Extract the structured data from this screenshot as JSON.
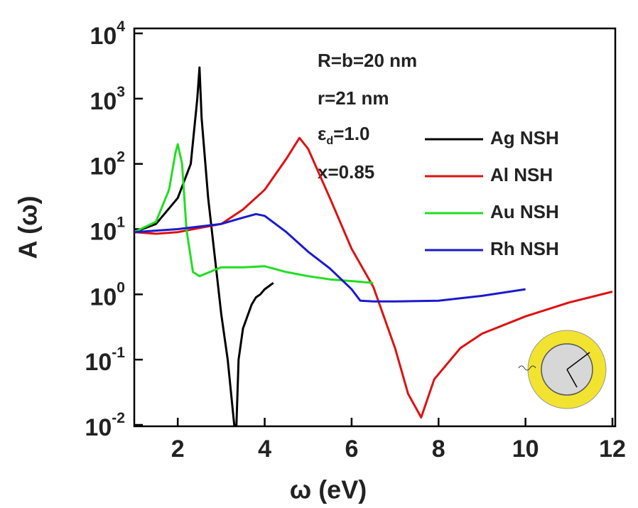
{
  "chart_data": {
    "type": "line",
    "x_label": "ω (eV)",
    "y_label": "A (ω)",
    "annotations": [
      "R=b=20 nm",
      "r=21 nm",
      "ε_d=1.0",
      "x=0.85"
    ],
    "xlim": [
      1,
      12
    ],
    "xticks": [
      2,
      4,
      6,
      8,
      10,
      12
    ],
    "ylim": [
      0.01,
      10000
    ],
    "log_y": true,
    "yticks": [
      {
        "value": 0.01,
        "label": "10^-2"
      },
      {
        "value": 0.1,
        "label": "10^-1"
      },
      {
        "value": 1,
        "label": "10^0"
      },
      {
        "value": 10,
        "label": "10^1"
      },
      {
        "value": 100,
        "label": "10^2"
      },
      {
        "value": 1000,
        "label": "10^3"
      },
      {
        "value": 10000,
        "label": "10^4"
      }
    ],
    "series": [
      {
        "name": "Ag NSH",
        "color": "#000000",
        "x": [
          1,
          1.5,
          2.0,
          2.3,
          2.45,
          2.5,
          2.55,
          2.7,
          2.9,
          3.0,
          3.15,
          3.3,
          3.35,
          3.4,
          3.5,
          3.7,
          3.8,
          3.9,
          4.0,
          4.2
        ],
        "values": [
          9,
          12,
          30,
          100,
          1000,
          3000,
          500,
          30,
          2,
          0.5,
          0.1,
          0.01,
          0.01,
          0.1,
          0.3,
          0.7,
          0.9,
          1.0,
          1.2,
          1.5
        ]
      },
      {
        "name": "Al NSH",
        "color": "#dd1111",
        "x": [
          1,
          1.5,
          2,
          3,
          3.5,
          4,
          4.5,
          4.8,
          5.0,
          5.5,
          6,
          6.5,
          7,
          7.3,
          7.6,
          7.9,
          8.5,
          9,
          10,
          11,
          12
        ],
        "values": [
          9,
          8.5,
          9,
          12,
          20,
          40,
          120,
          250,
          170,
          30,
          5,
          1.3,
          0.15,
          0.03,
          0.013,
          0.05,
          0.15,
          0.25,
          0.46,
          0.75,
          1.1
        ]
      },
      {
        "name": "Au NSH",
        "color": "#22dd22",
        "x": [
          1,
          1.5,
          1.8,
          1.95,
          2.0,
          2.1,
          2.2,
          2.35,
          2.5,
          3,
          3.5,
          4,
          4.5,
          5,
          5.5,
          6,
          6.5
        ],
        "values": [
          9,
          13,
          40,
          150,
          200,
          100,
          10,
          2.2,
          1.9,
          2.6,
          2.6,
          2.7,
          2.2,
          1.9,
          1.7,
          1.6,
          1.5
        ]
      },
      {
        "name": "Rh NSH",
        "color": "#1a1acc",
        "x": [
          1,
          2,
          3,
          3.5,
          3.8,
          4.0,
          4.5,
          5,
          5.5,
          6,
          6.2,
          6.5,
          7,
          8,
          9,
          10
        ],
        "values": [
          9,
          10,
          12,
          15,
          17,
          16,
          9,
          4.5,
          2.5,
          1.2,
          0.8,
          0.78,
          0.78,
          0.8,
          0.95,
          1.2
        ]
      }
    ]
  }
}
